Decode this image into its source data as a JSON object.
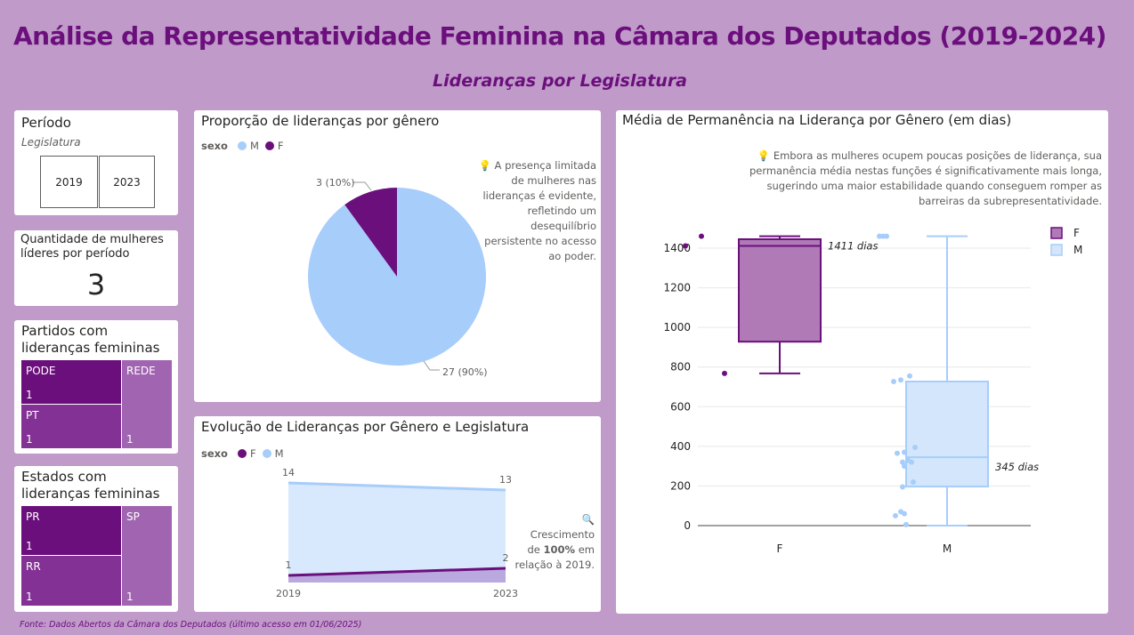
{
  "header": {
    "title": "Análise da Representatividade Feminina na Câmara dos Deputados (2019-2024)",
    "subtitle": "Lideranças por Legislatura"
  },
  "periodo": {
    "title": "Período",
    "field": "Legislatura",
    "options": [
      "2019",
      "2023"
    ]
  },
  "kpi": {
    "title": "Quantidade de mulheres líderes por período",
    "value": "3"
  },
  "partidos": {
    "title": "Partidos com lideranças femininas",
    "items": [
      {
        "label": "PODE",
        "value": "1",
        "color": "#6b0f7c"
      },
      {
        "label": "PT",
        "value": "1",
        "color": "#843195"
      },
      {
        "label": "REDE",
        "value": "1",
        "color": "#a064b0"
      }
    ]
  },
  "estados": {
    "title": "Estados com lideranças femininas",
    "items": [
      {
        "label": "PR",
        "value": "1",
        "color": "#6b0f7c"
      },
      {
        "label": "RR",
        "value": "1",
        "color": "#843195"
      },
      {
        "label": "SP",
        "value": "1",
        "color": "#a064b0"
      }
    ]
  },
  "pie": {
    "title": "Proporção de lideranças por gênero",
    "legend_title": "sexo",
    "legend": [
      "M",
      "F"
    ],
    "label_f": "3 (10%)",
    "label_m": "27 (90%)",
    "note": "💡 A presença limitada de mulheres nas lideranças é evidente, refletindo um desequilíbrio persistente no acesso ao poder."
  },
  "area": {
    "title": "Evolução de Lideranças por Gênero e Legislatura",
    "legend_title": "sexo",
    "legend": [
      "F",
      "M"
    ],
    "note_prefix": "🔍 Crescimento de ",
    "note_bold": "100%",
    "note_suffix": " em relação à 2019."
  },
  "box": {
    "title": "Média de Permanência na Liderança por Gênero (em dias)",
    "note": "💡 Embora as mulheres ocupem poucas posições de liderança, sua permanência média nestas funções é significativamente mais longa, sugerindo uma maior estabilidade quando conseguem romper as barreiras da subrepresentatividade.",
    "legend": [
      "F",
      "M"
    ],
    "label_f": "1411 dias",
    "label_m": "345 dias"
  },
  "footer": "Fonte: Dados Abertos da Câmara dos Deputados (último acesso em 01/06/2025)",
  "colors": {
    "female": "#6b0f7c",
    "male": "#a7cdfb",
    "accent": "#6b0f7c"
  },
  "chart_data": [
    {
      "type": "pie",
      "title": "Proporção de lideranças por gênero",
      "categories": [
        "M",
        "F"
      ],
      "values": [
        27,
        3
      ],
      "labels": [
        "27 (90%)",
        "3 (10%)"
      ],
      "colors": [
        "#a7cdfb",
        "#6b0f7c"
      ]
    },
    {
      "type": "area",
      "title": "Evolução de Lideranças por Gênero e Legislatura",
      "x": [
        "2019",
        "2023"
      ],
      "series": [
        {
          "name": "M",
          "values": [
            14,
            13
          ],
          "color": "#a7cdfb"
        },
        {
          "name": "F",
          "values": [
            1,
            2
          ],
          "color": "#6b0f7c"
        }
      ]
    },
    {
      "type": "box",
      "title": "Média de Permanência na Liderança por Gênero (em dias)",
      "categories": [
        "F",
        "M"
      ],
      "ylim": [
        0,
        1460
      ],
      "yticks": [
        0,
        200,
        400,
        600,
        800,
        1000,
        1200,
        1400
      ],
      "grid": true,
      "legend_position": "top-right",
      "series": [
        {
          "name": "F",
          "color": "#6b0f7c",
          "whisker_low": 768,
          "q1": 928,
          "median": 1411,
          "q3": 1445,
          "whisker_high": 1460,
          "mean_label": "1411 dias",
          "outliers": [
            1460,
            1411,
            768
          ]
        },
        {
          "name": "M",
          "color": "#a7cdfb",
          "whisker_low": 0,
          "q1": 197,
          "median": 345,
          "q3": 727,
          "whisker_high": 1460,
          "mean_label": "345 dias",
          "outliers": [
            1460,
            1460,
            1460,
            755,
            735,
            727,
            395,
            370,
            365,
            330,
            320,
            320,
            300,
            220,
            195,
            70,
            60,
            50,
            5
          ]
        }
      ]
    }
  ]
}
